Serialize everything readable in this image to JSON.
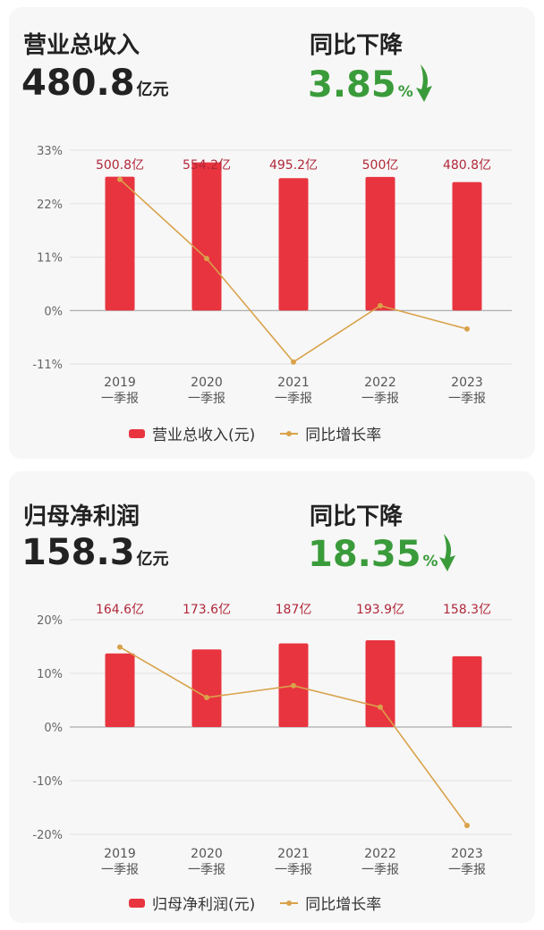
{
  "colors": {
    "bar": "#e8343f",
    "line": "#d9a24a",
    "down": "#3a9b3a"
  },
  "panel1": {
    "label": "营业总收入",
    "value": "480.8",
    "value_unit": "亿元",
    "change_label": "同比下降",
    "change_value": "3.85",
    "change_unit": "%",
    "legend_bar": "营业总收入(元)",
    "legend_line": "同比增长率"
  },
  "panel2": {
    "label": "归母净利润",
    "value": "158.3",
    "value_unit": "亿元",
    "change_label": "同比下降",
    "change_value": "18.35",
    "change_unit": "%",
    "legend_bar": "归母净利润(元)",
    "legend_line": "同比增长率"
  },
  "chart_data": [
    {
      "type": "bar",
      "categories": [
        "2019\n一季报",
        "2020\n一季报",
        "2021\n一季报",
        "2022\n一季报",
        "2023\n一季报"
      ],
      "series": [
        {
          "name": "营业总收入(元)",
          "type": "bar",
          "values": [
            500.8,
            554.2,
            495.2,
            500,
            480.8
          ],
          "labels": [
            "500.8亿",
            "554.2亿",
            "495.2亿",
            "500亿",
            "480.8亿"
          ]
        },
        {
          "name": "同比增长率",
          "type": "line",
          "values": [
            27,
            10.7,
            -10.6,
            1,
            -3.8
          ]
        }
      ],
      "yticks": [
        "33%",
        "22%",
        "11%",
        "0%",
        "-11%"
      ],
      "ylim": [
        -11,
        33
      ],
      "bar_ylim": [
        0,
        600
      ],
      "grid": true,
      "legend": "bottom"
    },
    {
      "type": "bar",
      "categories": [
        "2019\n一季报",
        "2020\n一季报",
        "2021\n一季报",
        "2022\n一季报",
        "2023\n一季报"
      ],
      "series": [
        {
          "name": "归母净利润(元)",
          "type": "bar",
          "values": [
            164.6,
            173.6,
            187,
            193.9,
            158.3
          ],
          "labels": [
            "164.6亿",
            "173.6亿",
            "187亿",
            "193.9亿",
            "158.3亿"
          ]
        },
        {
          "name": "同比增长率",
          "type": "line",
          "values": [
            14.9,
            5.5,
            7.7,
            3.7,
            -18.35
          ]
        }
      ],
      "yticks": [
        "20%",
        "10%",
        "0%",
        "-10%",
        "-20%"
      ],
      "ylim": [
        -20,
        20
      ],
      "bar_ylim": [
        0,
        240
      ],
      "grid": true,
      "legend": "bottom"
    }
  ]
}
